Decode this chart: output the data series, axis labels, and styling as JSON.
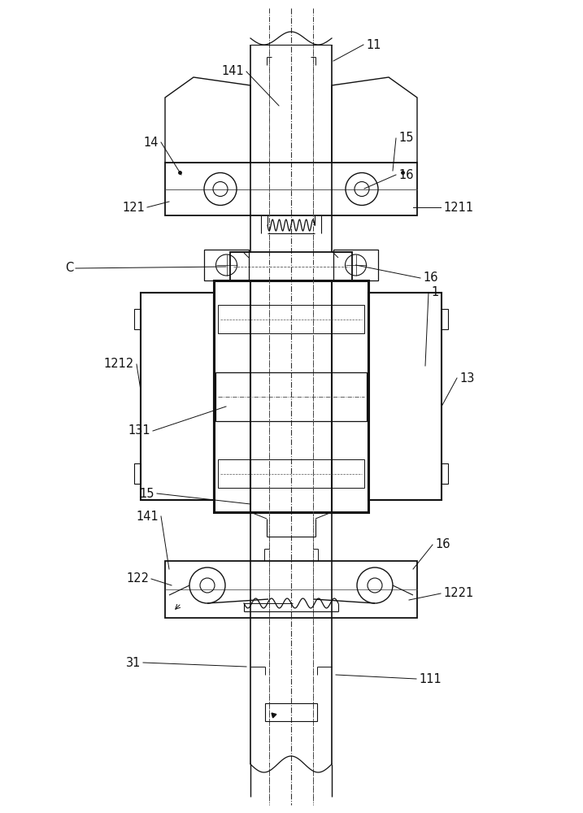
{
  "fig_width": 7.17,
  "fig_height": 10.0,
  "lc": "#111111",
  "bg": "white",
  "labels": {
    "141_top": "141",
    "11": "11",
    "14": "14",
    "15_top": "15",
    "16_top": "16",
    "121": "121",
    "1211": "1211",
    "C": "C",
    "1": "1",
    "16_mid": "16",
    "1212": "1212",
    "13": "13",
    "131": "131",
    "15_low": "15",
    "141_low": "141",
    "16_low": "16",
    "122": "122",
    "1221": "1221",
    "31": "31",
    "111": "111"
  }
}
